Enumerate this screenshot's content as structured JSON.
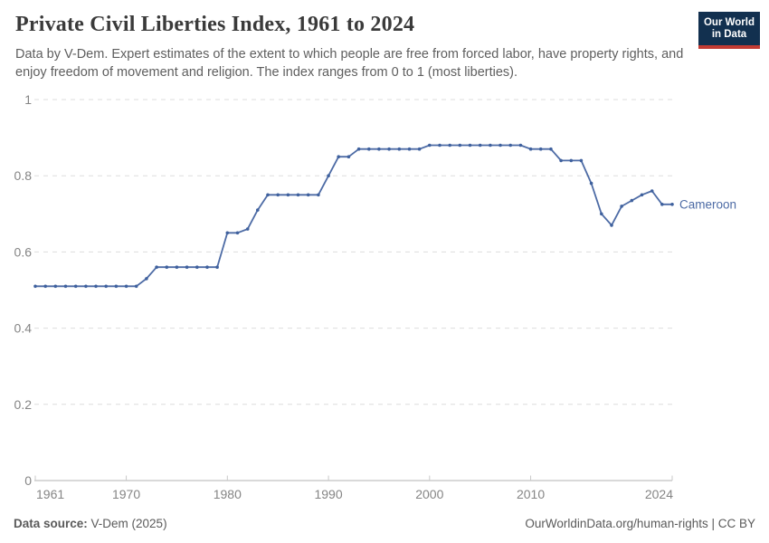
{
  "header": {
    "title": "Private Civil Liberties Index, 1961 to 2024",
    "subtitle": "Data by V-Dem. Expert estimates of the extent to which people are free from forced labor, have property rights, and enjoy freedom of movement and religion. The index ranges from 0 to 1 (most liberties).",
    "logo": {
      "line1": "Our World",
      "line2": "in Data",
      "bg_color": "#12304f",
      "accent_color": "#c23b33"
    }
  },
  "chart_data": {
    "type": "line",
    "title": "Private Civil Liberties Index, 1961 to 2024",
    "xlabel": "",
    "ylabel": "",
    "xlim": [
      1961,
      2024
    ],
    "ylim": [
      0,
      1
    ],
    "xticks": [
      1961,
      1970,
      1980,
      1990,
      2000,
      2010,
      2024
    ],
    "yticks": [
      0,
      0.2,
      0.4,
      0.6,
      0.8,
      1
    ],
    "grid": "horizontal-dashed",
    "legend_position": "end-of-line-label",
    "line_color": "#4d6ba5",
    "marker_color": "#3f619e",
    "grid_color": "#dddddd",
    "axis_color": "#b3b3b3",
    "tick_label_color": "#858585",
    "series": [
      {
        "name": "Cameroon",
        "x": [
          1961,
          1962,
          1963,
          1964,
          1965,
          1966,
          1967,
          1968,
          1969,
          1970,
          1971,
          1972,
          1973,
          1974,
          1975,
          1976,
          1977,
          1978,
          1979,
          1980,
          1981,
          1982,
          1983,
          1984,
          1985,
          1986,
          1987,
          1988,
          1989,
          1990,
          1991,
          1992,
          1993,
          1994,
          1995,
          1996,
          1997,
          1998,
          1999,
          2000,
          2001,
          2002,
          2003,
          2004,
          2005,
          2006,
          2007,
          2008,
          2009,
          2010,
          2011,
          2012,
          2013,
          2014,
          2015,
          2016,
          2017,
          2018,
          2019,
          2020,
          2021,
          2022,
          2023,
          2024
        ],
        "values": [
          0.51,
          0.51,
          0.51,
          0.51,
          0.51,
          0.51,
          0.51,
          0.51,
          0.51,
          0.51,
          0.51,
          0.53,
          0.56,
          0.56,
          0.56,
          0.56,
          0.56,
          0.56,
          0.56,
          0.65,
          0.65,
          0.66,
          0.71,
          0.75,
          0.75,
          0.75,
          0.75,
          0.75,
          0.75,
          0.8,
          0.85,
          0.85,
          0.87,
          0.87,
          0.87,
          0.87,
          0.87,
          0.87,
          0.87,
          0.88,
          0.88,
          0.88,
          0.88,
          0.88,
          0.88,
          0.88,
          0.88,
          0.88,
          0.88,
          0.87,
          0.87,
          0.87,
          0.84,
          0.84,
          0.84,
          0.78,
          0.7,
          0.67,
          0.72,
          0.735,
          0.75,
          0.76,
          0.725,
          0.725
        ]
      }
    ]
  },
  "footer": {
    "source_label": "Data source:",
    "source_value": " V-Dem (2025)",
    "link": "OurWorldinData.org/human-rights",
    "separator": " | ",
    "license": "CC BY"
  }
}
